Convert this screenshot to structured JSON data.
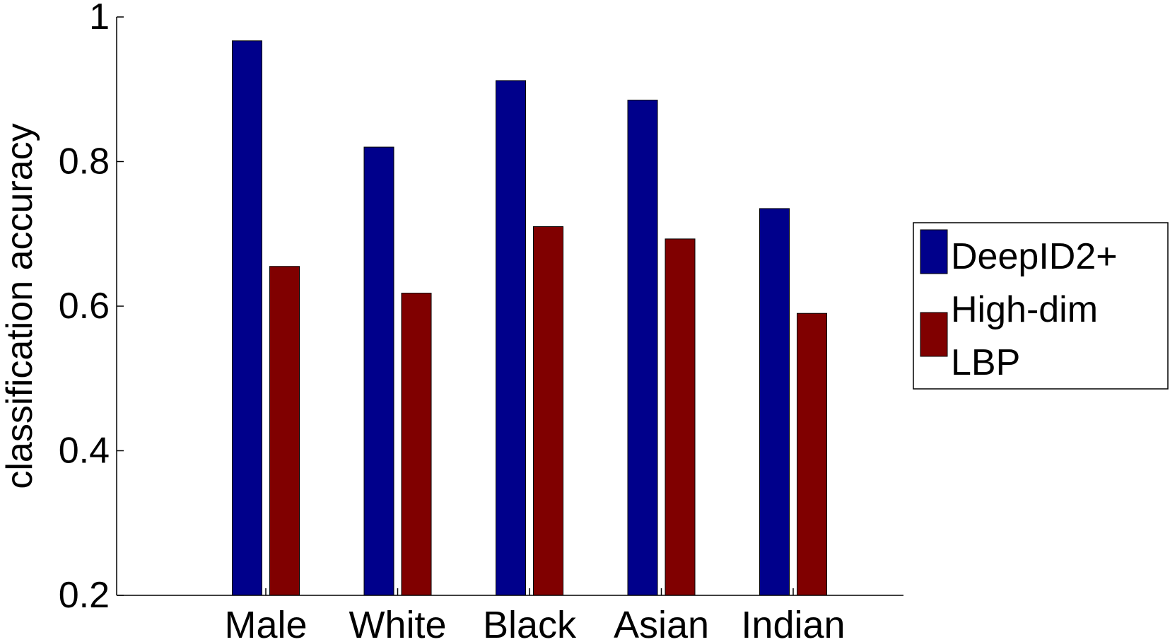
{
  "chart_data": {
    "type": "bar",
    "categories": [
      "Male",
      "White",
      "Black",
      "Asian",
      "Indian"
    ],
    "series": [
      {
        "name": "DeepID2+",
        "values": [
          0.967,
          0.82,
          0.912,
          0.885,
          0.735
        ],
        "color": "#00008B"
      },
      {
        "name": "High-dim LBP",
        "values": [
          0.655,
          0.618,
          0.71,
          0.693,
          0.59
        ],
        "color": "#800000"
      }
    ],
    "ylabel": "classification accuracy",
    "ylim": [
      0.2,
      1
    ],
    "yticks": [
      0.2,
      0.4,
      0.6,
      0.8,
      1
    ],
    "ytick_labels": [
      "0.2",
      "0.4",
      "0.6",
      "0.8",
      "1"
    ],
    "legend": {
      "placement": "right",
      "entries": [
        {
          "lines": [
            "DeepID2+"
          ]
        },
        {
          "lines": [
            "High-dim",
            "LBP"
          ]
        }
      ]
    },
    "grid": false
  }
}
